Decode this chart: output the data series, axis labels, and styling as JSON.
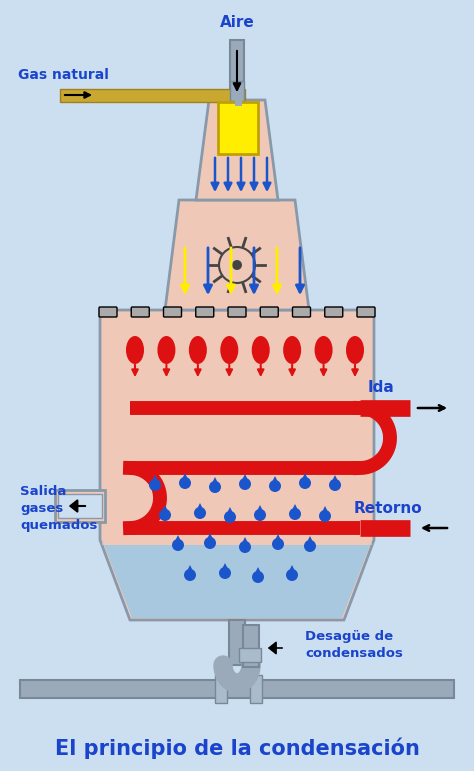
{
  "title": "El principio de la condensación",
  "title_fontsize": 15,
  "title_color": "#1a44cc",
  "bg_color": "#ccdff0",
  "labels": {
    "aire": "Aire",
    "gas_natural": "Gas natural",
    "ida": "Ida",
    "retorno": "Retorno",
    "salida": "Salida\ngases\nquemados",
    "desague": "Desagüe de\ncondensados"
  },
  "label_color": "#1a44cc",
  "body_fill": "#f0c8b8",
  "body_edge": "#8899aa",
  "water_fill": "#a8c8e0",
  "red_pipe": "#dd1111",
  "blue_arrow": "#1a55cc",
  "yellow_arrow": "#ffee00",
  "pipe_gold": "#c8a830",
  "gray_pipe": "#9aaabb"
}
